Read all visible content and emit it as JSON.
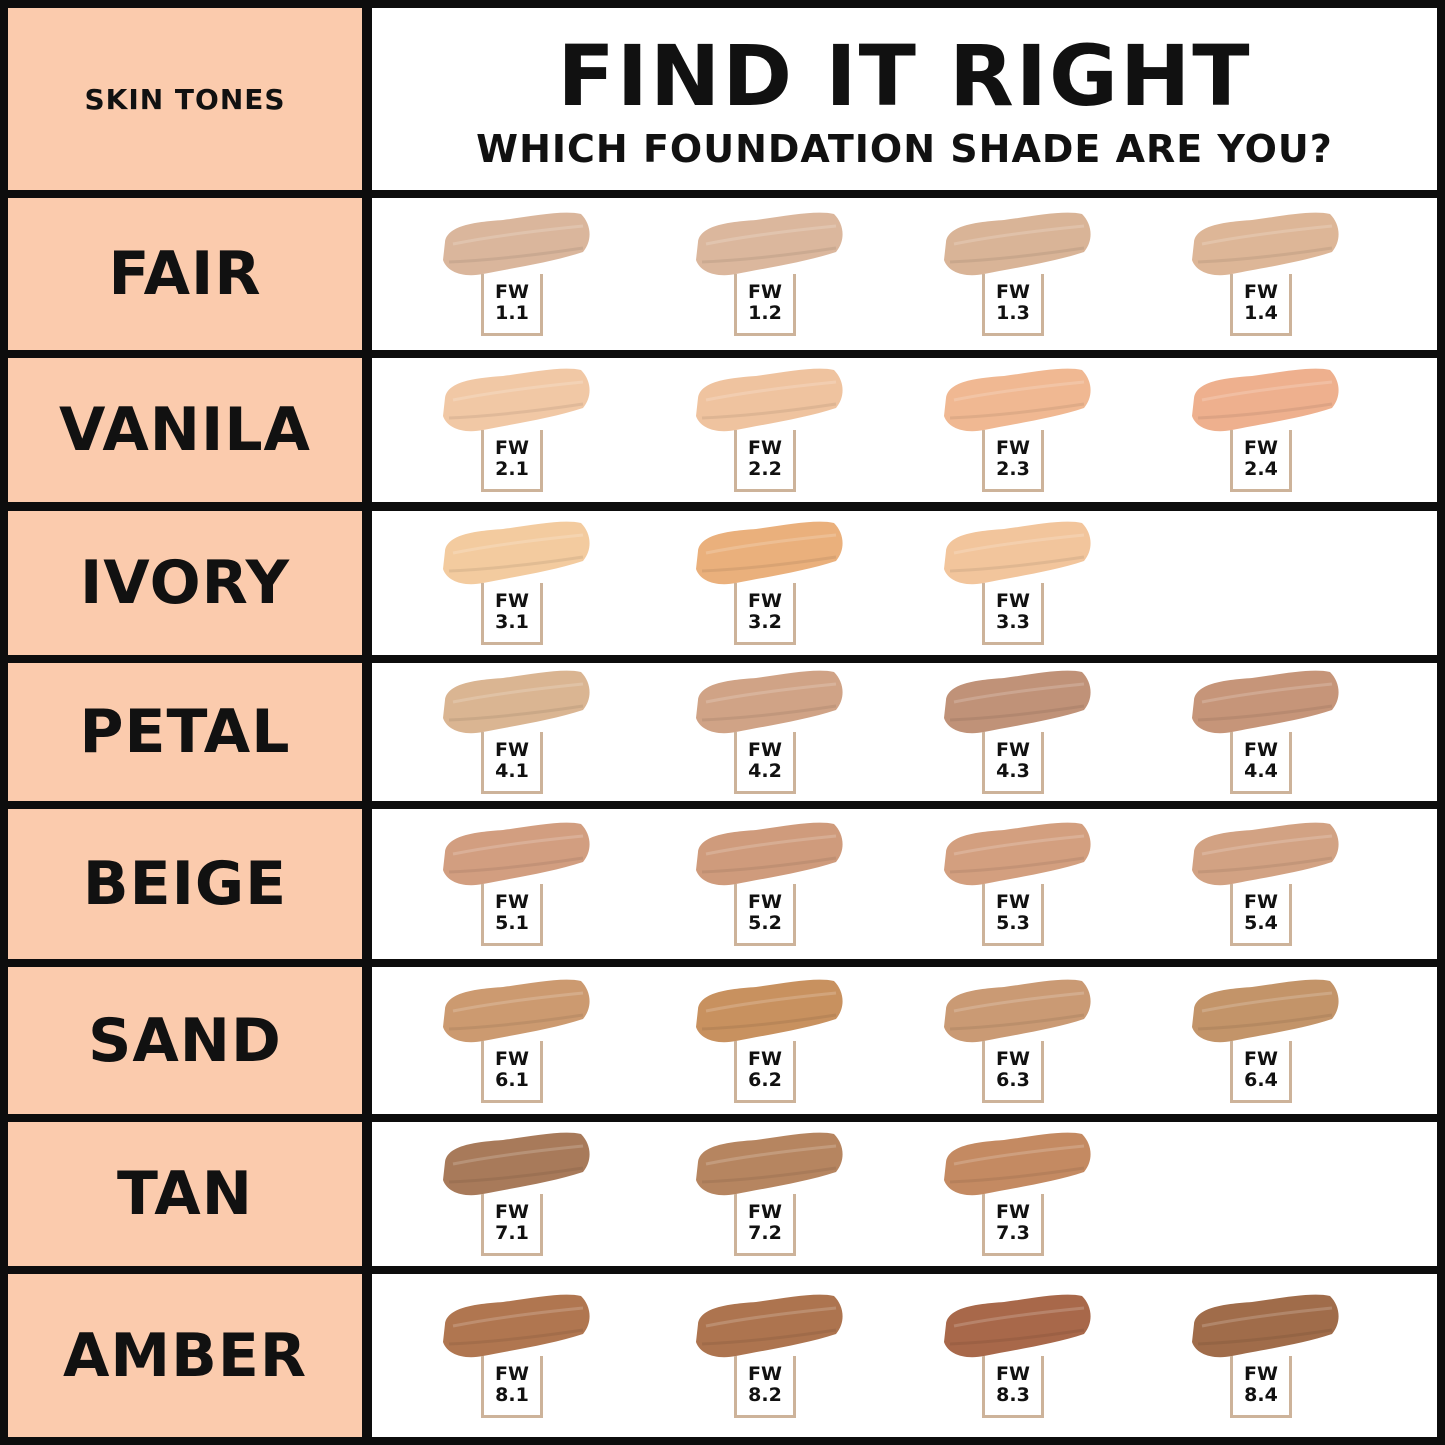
{
  "header": {
    "left_label": "SKIN TONES",
    "title": "FIND IT RIGHT",
    "subtitle": "WHICH FOUNDATION SHADE ARE YOU?"
  },
  "rows": [
    {
      "tone": "FAIR",
      "shades": [
        {
          "prefix": "FW",
          "code": "1.1",
          "color": "#dab69c"
        },
        {
          "prefix": "FW",
          "code": "1.2",
          "color": "#dbb79d"
        },
        {
          "prefix": "FW",
          "code": "1.3",
          "color": "#d9b497"
        },
        {
          "prefix": "FW",
          "code": "1.4",
          "color": "#ddb697"
        }
      ]
    },
    {
      "tone": "VANILA",
      "shades": [
        {
          "prefix": "FW",
          "code": "2.1",
          "color": "#f1c8a5"
        },
        {
          "prefix": "FW",
          "code": "2.2",
          "color": "#efc39f"
        },
        {
          "prefix": "FW",
          "code": "2.3",
          "color": "#f0b892"
        },
        {
          "prefix": "FW",
          "code": "2.4",
          "color": "#eeb08e"
        }
      ]
    },
    {
      "tone": "IVORY",
      "shades": [
        {
          "prefix": "FW",
          "code": "3.1",
          "color": "#f3cb9f"
        },
        {
          "prefix": "FW",
          "code": "3.2",
          "color": "#eab07c"
        },
        {
          "prefix": "FW",
          "code": "3.3",
          "color": "#f2c59c"
        }
      ]
    },
    {
      "tone": "PETAL",
      "shades": [
        {
          "prefix": "FW",
          "code": "4.1",
          "color": "#dab592"
        },
        {
          "prefix": "FW",
          "code": "4.2",
          "color": "#d0a386"
        },
        {
          "prefix": "FW",
          "code": "4.3",
          "color": "#c09278"
        },
        {
          "prefix": "FW",
          "code": "4.4",
          "color": "#c69579"
        }
      ]
    },
    {
      "tone": "BEIGE",
      "shades": [
        {
          "prefix": "FW",
          "code": "5.1",
          "color": "#d29e80"
        },
        {
          "prefix": "FW",
          "code": "5.2",
          "color": "#cf9b7c"
        },
        {
          "prefix": "FW",
          "code": "5.3",
          "color": "#d39f7f"
        },
        {
          "prefix": "FW",
          "code": "5.4",
          "color": "#d2a283"
        }
      ]
    },
    {
      "tone": "SAND",
      "shades": [
        {
          "prefix": "FW",
          "code": "6.1",
          "color": "#cc9a70"
        },
        {
          "prefix": "FW",
          "code": "6.2",
          "color": "#c8915f"
        },
        {
          "prefix": "FW",
          "code": "6.3",
          "color": "#ca9a74"
        },
        {
          "prefix": "FW",
          "code": "6.4",
          "color": "#c39469"
        }
      ]
    },
    {
      "tone": "TAN",
      "shades": [
        {
          "prefix": "FW",
          "code": "7.1",
          "color": "#a87a5a"
        },
        {
          "prefix": "FW",
          "code": "7.2",
          "color": "#b68560"
        },
        {
          "prefix": "FW",
          "code": "7.3",
          "color": "#c48a62"
        }
      ]
    },
    {
      "tone": "AMBER",
      "shades": [
        {
          "prefix": "FW",
          "code": "8.1",
          "color": "#b07650"
        },
        {
          "prefix": "FW",
          "code": "8.2",
          "color": "#ad744f"
        },
        {
          "prefix": "FW",
          "code": "8.3",
          "color": "#a8684a"
        },
        {
          "prefix": "FW",
          "code": "8.4",
          "color": "#a06c4a"
        }
      ]
    }
  ]
}
